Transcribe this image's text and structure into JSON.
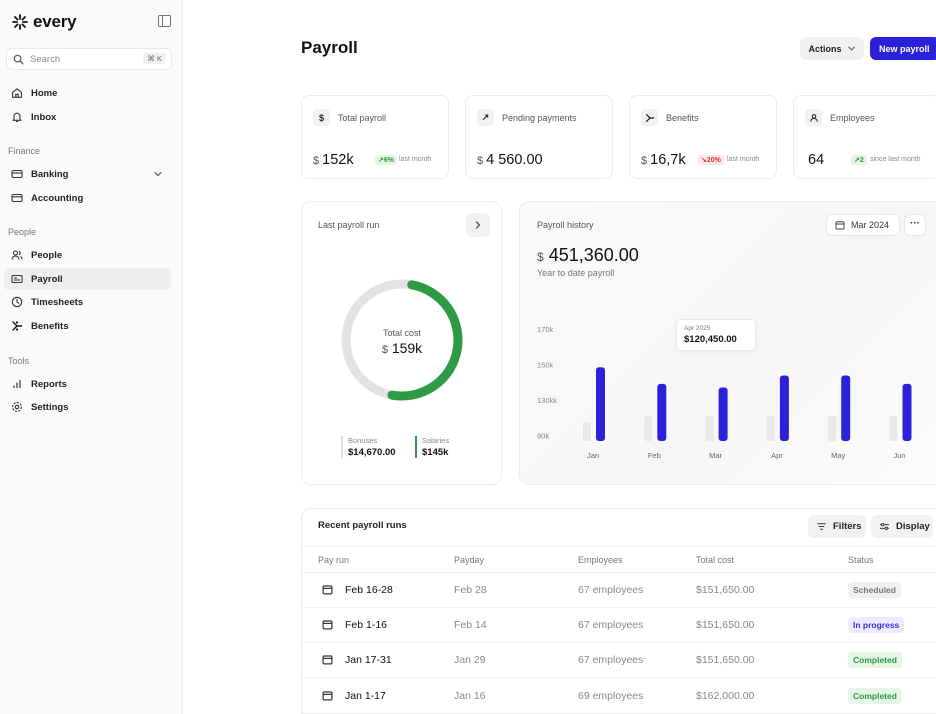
{
  "brand": {
    "name": "every"
  },
  "search": {
    "placeholder": "Search",
    "shortcut": "⌘ K"
  },
  "nav": {
    "top": [
      {
        "label": "Home",
        "icon": "home-icon"
      },
      {
        "label": "Inbox",
        "icon": "bell-icon"
      }
    ],
    "sections": [
      {
        "label": "Finance",
        "items": [
          {
            "label": "Banking",
            "icon": "card-icon"
          },
          {
            "label": "Accounting",
            "icon": "wallet-icon"
          }
        ]
      },
      {
        "label": "People",
        "items": [
          {
            "label": "People",
            "icon": "users-icon"
          },
          {
            "label": "Payroll",
            "icon": "payroll-icon"
          },
          {
            "label": "Timesheets",
            "icon": "clock-icon"
          },
          {
            "label": "Benefits",
            "icon": "benefits-icon"
          }
        ]
      },
      {
        "label": "Tools",
        "items": [
          {
            "label": "Reports",
            "icon": "bar-chart-icon"
          },
          {
            "label": "Settings",
            "icon": "gear-icon"
          }
        ]
      }
    ],
    "active": "Payroll"
  },
  "header": {
    "title": "Payroll",
    "actions_label": "Actions",
    "new_label": "New payroll"
  },
  "stats": [
    {
      "label": "Total payroll",
      "currency": "$",
      "value": "152k",
      "delta": "6%",
      "direction": "up",
      "note": "last month"
    },
    {
      "label": "Pending payments",
      "currency": "$",
      "value": "4 560.00"
    },
    {
      "label": "Benefits",
      "currency": "$",
      "value": "16,7k",
      "delta": "20%",
      "direction": "down",
      "note": "last month"
    },
    {
      "label": "Employees",
      "currency": "",
      "value": "64",
      "delta": "2",
      "direction": "up",
      "note": "since last month"
    }
  ],
  "last_run": {
    "title": "Last payroll run",
    "center_label": "Total cost",
    "center_currency": "$",
    "center_value": "159k",
    "bonuses_label": "Bonuses",
    "bonuses_value": "$14,670.00",
    "salaries_label": "Salaries",
    "salaries_value": "$145k",
    "salaries_fraction": 0.91,
    "colors": {
      "salaries": "#2e9a43",
      "bonuses": "#e3e3e3"
    }
  },
  "history": {
    "title": "Payroll history",
    "currency": "$",
    "value": "451,360.00",
    "subtitle": "Year to date payroll",
    "date_label": "Mar 2024",
    "more_label": "···",
    "tooltip_label": "Apr 2025",
    "tooltip_value": "$120,450.00"
  },
  "chart_data": {
    "type": "bar",
    "categories": [
      "Jan",
      "Feb",
      "Mar",
      "Apr",
      "May",
      "Jun"
    ],
    "y_ticks": [
      "170k",
      "150k",
      "130kk",
      "90k"
    ],
    "series": [
      {
        "values": [
          142000,
          128000,
          125000,
          135000,
          135000,
          128000
        ],
        "color": "#2a21d9"
      },
      {
        "values": [
          96000,
          101000,
          101000,
          101000,
          101000,
          101000
        ],
        "color": "#e8e8e8"
      }
    ],
    "ylim": [
      80000,
      180000
    ],
    "grid": false
  },
  "table": {
    "title": "Recent payroll runs",
    "filters_label": "Filters",
    "display_label": "Display",
    "columns": [
      "Pay run",
      "Payday",
      "Employees",
      "Total cost",
      "Status"
    ],
    "rows": [
      {
        "run": "Feb 16-28",
        "payday": "Feb 28",
        "employees": "67 employees",
        "cost": "$151,650.00",
        "status": "Scheduled",
        "kind": "scheduled"
      },
      {
        "run": "Feb 1-16",
        "payday": "Feb 14",
        "employees": "67 employees",
        "cost": "$151,650.00",
        "status": "In progress",
        "kind": "progress"
      },
      {
        "run": "Jan 17-31",
        "payday": "Jan 29",
        "employees": "67 employees",
        "cost": "$151,650.00",
        "status": "Completed",
        "kind": "completed"
      },
      {
        "run": "Jan 1-17",
        "payday": "Jan 16",
        "employees": "69 employees",
        "cost": "$162,000.00",
        "status": "Completed",
        "kind": "completed"
      }
    ]
  }
}
